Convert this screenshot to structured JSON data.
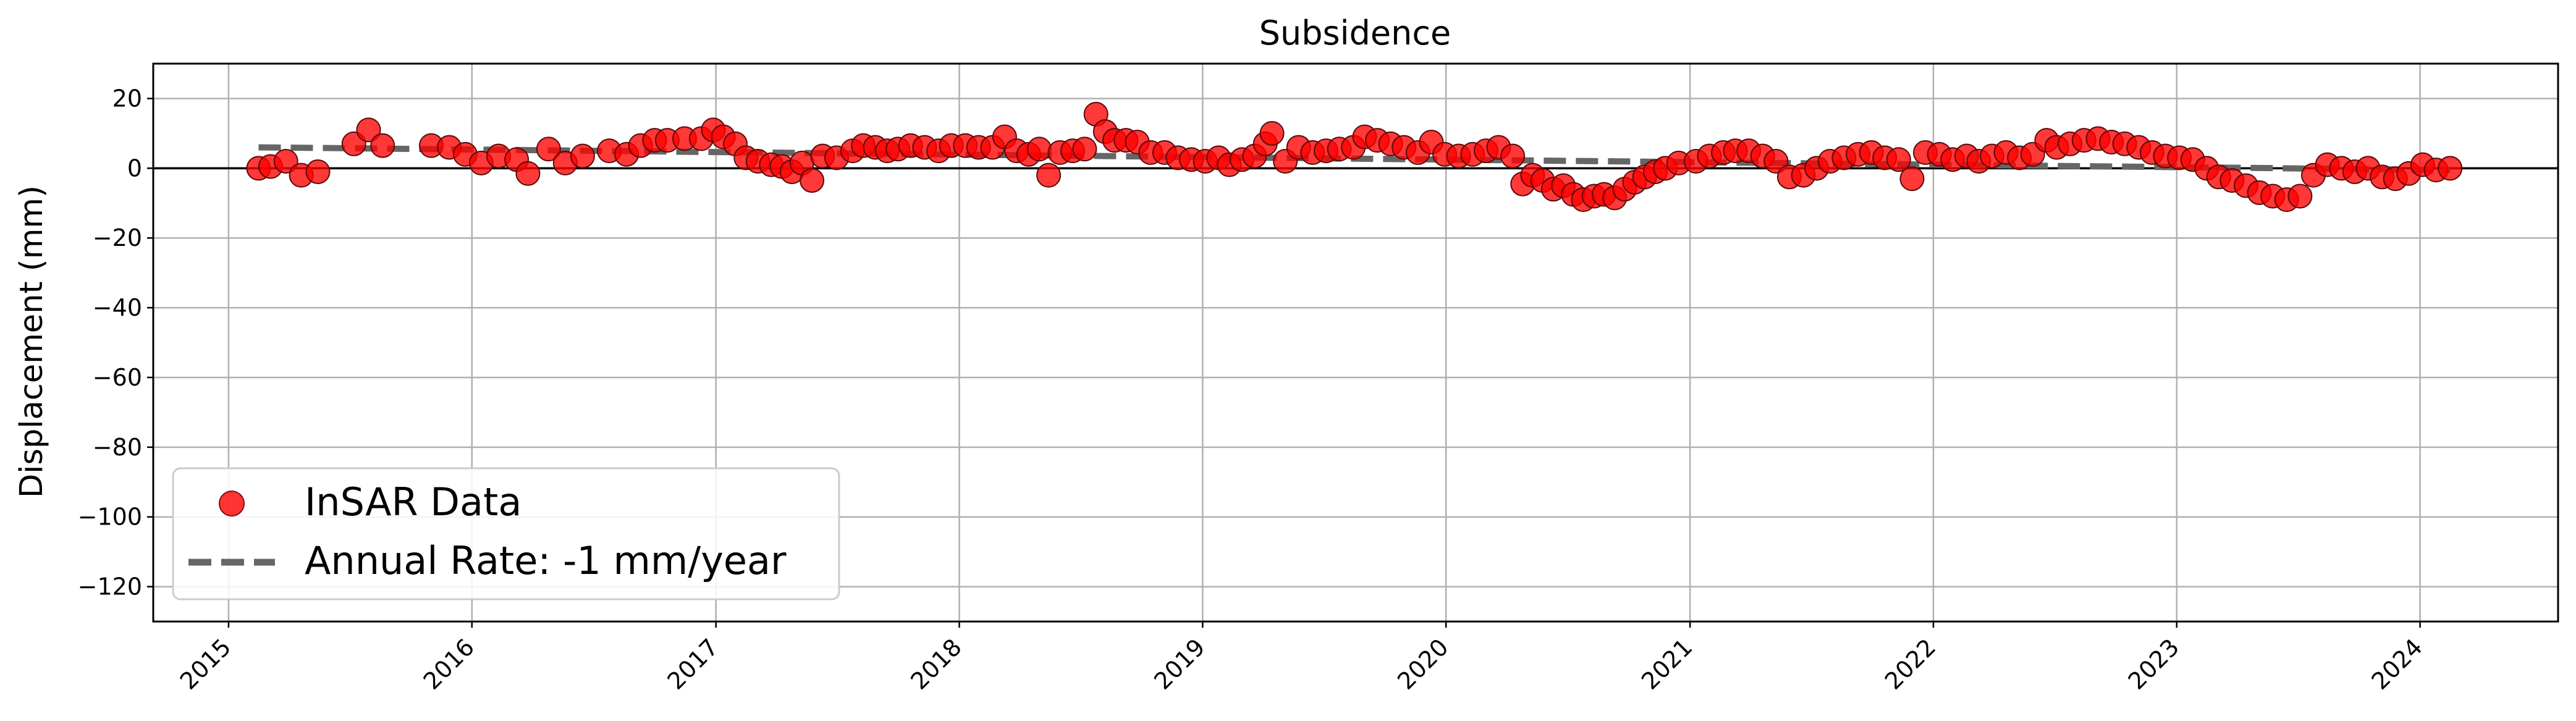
{
  "chart_data": {
    "type": "scatter",
    "title": "Subsidence",
    "xlabel": "",
    "ylabel": "Displacement (mm)",
    "xlim": [
      "2014-09-10",
      "2024-07-26"
    ],
    "ylim": [
      -130,
      30
    ],
    "y_ticks": [
      20,
      0,
      -20,
      -40,
      -60,
      -80,
      -100,
      -120
    ],
    "x_ticks": [
      "2015",
      "2016",
      "2017",
      "2018",
      "2019",
      "2020",
      "2021",
      "2022",
      "2023",
      "2024"
    ],
    "x_tick_rotation": 45,
    "grid": true,
    "zero_line": true,
    "legend_placement": "lower-left",
    "series": [
      {
        "name": "InSAR Data",
        "kind": "scatter",
        "color": "#ff0000",
        "points": [
          [
            "2015-02-15",
            0.0
          ],
          [
            "2015-03-05",
            0.5
          ],
          [
            "2015-03-28",
            2.0
          ],
          [
            "2015-04-20",
            -2.0
          ],
          [
            "2015-05-15",
            -1.0
          ],
          [
            "2015-07-08",
            7.0
          ],
          [
            "2015-07-30",
            11.0
          ],
          [
            "2015-08-20",
            6.5
          ],
          [
            "2015-11-01",
            6.5
          ],
          [
            "2015-11-28",
            6.0
          ],
          [
            "2015-12-22",
            4.0
          ],
          [
            "2016-01-15",
            1.5
          ],
          [
            "2016-02-10",
            3.5
          ],
          [
            "2016-03-08",
            2.5
          ],
          [
            "2016-03-25",
            -1.5
          ],
          [
            "2016-04-25",
            5.5
          ],
          [
            "2016-05-20",
            1.5
          ],
          [
            "2016-06-15",
            3.5
          ],
          [
            "2016-07-25",
            5.0
          ],
          [
            "2016-08-20",
            4.0
          ],
          [
            "2016-09-10",
            6.5
          ],
          [
            "2016-10-01",
            8.0
          ],
          [
            "2016-10-20",
            8.0
          ],
          [
            "2016-11-15",
            8.5
          ],
          [
            "2016-12-10",
            8.5
          ],
          [
            "2016-12-28",
            11.0
          ],
          [
            "2017-01-12",
            9.0
          ],
          [
            "2017-01-30",
            7.0
          ],
          [
            "2017-02-15",
            3.0
          ],
          [
            "2017-03-05",
            2.0
          ],
          [
            "2017-03-25",
            1.0
          ],
          [
            "2017-04-10",
            0.5
          ],
          [
            "2017-04-25",
            -1.0
          ],
          [
            "2017-05-10",
            1.5
          ],
          [
            "2017-05-25",
            -3.5
          ],
          [
            "2017-06-10",
            3.5
          ],
          [
            "2017-07-01",
            3.0
          ],
          [
            "2017-07-25",
            5.0
          ],
          [
            "2017-08-10",
            6.5
          ],
          [
            "2017-08-28",
            6.0
          ],
          [
            "2017-09-15",
            5.0
          ],
          [
            "2017-10-01",
            5.5
          ],
          [
            "2017-10-20",
            6.5
          ],
          [
            "2017-11-10",
            6.0
          ],
          [
            "2017-12-01",
            5.0
          ],
          [
            "2017-12-20",
            6.5
          ],
          [
            "2018-01-10",
            6.5
          ],
          [
            "2018-01-30",
            6.0
          ],
          [
            "2018-02-20",
            6.0
          ],
          [
            "2018-03-10",
            9.0
          ],
          [
            "2018-03-28",
            5.0
          ],
          [
            "2018-04-15",
            4.0
          ],
          [
            "2018-05-01",
            5.5
          ],
          [
            "2018-05-15",
            -2.0
          ],
          [
            "2018-06-01",
            4.5
          ],
          [
            "2018-06-20",
            5.0
          ],
          [
            "2018-07-08",
            5.5
          ],
          [
            "2018-07-25",
            15.5
          ],
          [
            "2018-08-08",
            10.5
          ],
          [
            "2018-08-22",
            8.0
          ],
          [
            "2018-09-08",
            8.0
          ],
          [
            "2018-09-25",
            7.5
          ],
          [
            "2018-10-15",
            4.5
          ],
          [
            "2018-11-05",
            4.5
          ],
          [
            "2018-11-25",
            3.0
          ],
          [
            "2018-12-15",
            2.5
          ],
          [
            "2019-01-05",
            2.0
          ],
          [
            "2019-01-25",
            3.0
          ],
          [
            "2019-02-10",
            1.0
          ],
          [
            "2019-03-01",
            2.5
          ],
          [
            "2019-03-20",
            3.5
          ],
          [
            "2019-04-05",
            7.0
          ],
          [
            "2019-04-15",
            10.0
          ],
          [
            "2019-05-05",
            2.0
          ],
          [
            "2019-05-25",
            6.0
          ],
          [
            "2019-06-15",
            4.5
          ],
          [
            "2019-07-05",
            5.0
          ],
          [
            "2019-07-25",
            5.5
          ],
          [
            "2019-08-15",
            6.0
          ],
          [
            "2019-09-01",
            9.0
          ],
          [
            "2019-09-20",
            8.0
          ],
          [
            "2019-10-10",
            7.0
          ],
          [
            "2019-10-30",
            6.0
          ],
          [
            "2019-11-20",
            4.5
          ],
          [
            "2019-12-10",
            7.5
          ],
          [
            "2019-12-30",
            4.0
          ],
          [
            "2020-01-20",
            3.5
          ],
          [
            "2020-02-10",
            4.0
          ],
          [
            "2020-03-01",
            5.0
          ],
          [
            "2020-03-20",
            6.0
          ],
          [
            "2020-04-10",
            3.5
          ],
          [
            "2020-04-25",
            -4.5
          ],
          [
            "2020-05-10",
            -2.0
          ],
          [
            "2020-05-25",
            -3.5
          ],
          [
            "2020-06-10",
            -6.0
          ],
          [
            "2020-06-25",
            -5.0
          ],
          [
            "2020-07-10",
            -7.5
          ],
          [
            "2020-07-25",
            -9.0
          ],
          [
            "2020-08-10",
            -8.0
          ],
          [
            "2020-08-25",
            -7.5
          ],
          [
            "2020-09-10",
            -8.5
          ],
          [
            "2020-09-25",
            -6.0
          ],
          [
            "2020-10-10",
            -4.0
          ],
          [
            "2020-10-25",
            -2.5
          ],
          [
            "2020-11-10",
            -1.0
          ],
          [
            "2020-11-25",
            0.0
          ],
          [
            "2020-12-15",
            1.5
          ],
          [
            "2021-01-10",
            2.0
          ],
          [
            "2021-01-30",
            3.5
          ],
          [
            "2021-02-20",
            4.5
          ],
          [
            "2021-03-10",
            5.0
          ],
          [
            "2021-03-30",
            5.0
          ],
          [
            "2021-04-20",
            3.5
          ],
          [
            "2021-05-10",
            2.0
          ],
          [
            "2021-05-30",
            -2.5
          ],
          [
            "2021-06-20",
            -2.0
          ],
          [
            "2021-07-10",
            0.0
          ],
          [
            "2021-07-30",
            2.0
          ],
          [
            "2021-08-20",
            3.0
          ],
          [
            "2021-09-10",
            4.0
          ],
          [
            "2021-09-30",
            4.5
          ],
          [
            "2021-10-20",
            3.0
          ],
          [
            "2021-11-10",
            2.5
          ],
          [
            "2021-11-30",
            -3.0
          ],
          [
            "2021-12-20",
            4.5
          ],
          [
            "2022-01-10",
            4.0
          ],
          [
            "2022-01-30",
            2.5
          ],
          [
            "2022-02-20",
            3.5
          ],
          [
            "2022-03-10",
            2.0
          ],
          [
            "2022-03-30",
            3.5
          ],
          [
            "2022-04-20",
            4.5
          ],
          [
            "2022-05-10",
            3.0
          ],
          [
            "2022-05-30",
            4.0
          ],
          [
            "2022-06-20",
            8.0
          ],
          [
            "2022-07-05",
            6.0
          ],
          [
            "2022-07-25",
            7.0
          ],
          [
            "2022-08-15",
            8.0
          ],
          [
            "2022-09-05",
            8.5
          ],
          [
            "2022-09-25",
            7.5
          ],
          [
            "2022-10-15",
            7.0
          ],
          [
            "2022-11-05",
            6.0
          ],
          [
            "2022-11-25",
            4.5
          ],
          [
            "2022-12-15",
            3.5
          ],
          [
            "2023-01-05",
            3.0
          ],
          [
            "2023-01-25",
            2.5
          ],
          [
            "2023-02-15",
            0.0
          ],
          [
            "2023-03-05",
            -2.5
          ],
          [
            "2023-03-25",
            -3.5
          ],
          [
            "2023-04-15",
            -5.0
          ],
          [
            "2023-05-05",
            -7.0
          ],
          [
            "2023-05-25",
            -8.0
          ],
          [
            "2023-06-15",
            -9.0
          ],
          [
            "2023-07-05",
            -8.0
          ],
          [
            "2023-07-25",
            -2.0
          ],
          [
            "2023-08-15",
            1.0
          ],
          [
            "2023-09-05",
            0.0
          ],
          [
            "2023-09-25",
            -1.0
          ],
          [
            "2023-10-15",
            0.0
          ],
          [
            "2023-11-05",
            -2.5
          ],
          [
            "2023-11-25",
            -3.0
          ],
          [
            "2023-12-15",
            -1.5
          ],
          [
            "2024-01-05",
            1.0
          ],
          [
            "2024-01-25",
            -0.5
          ],
          [
            "2024-02-15",
            0.0
          ]
        ]
      },
      {
        "name": "Annual Rate: -1 mm/year",
        "kind": "line",
        "style": "dashed",
        "color": "#666666",
        "points": [
          [
            "2015-02-15",
            6.0
          ],
          [
            "2024-02-15",
            -0.5
          ]
        ]
      }
    ]
  }
}
